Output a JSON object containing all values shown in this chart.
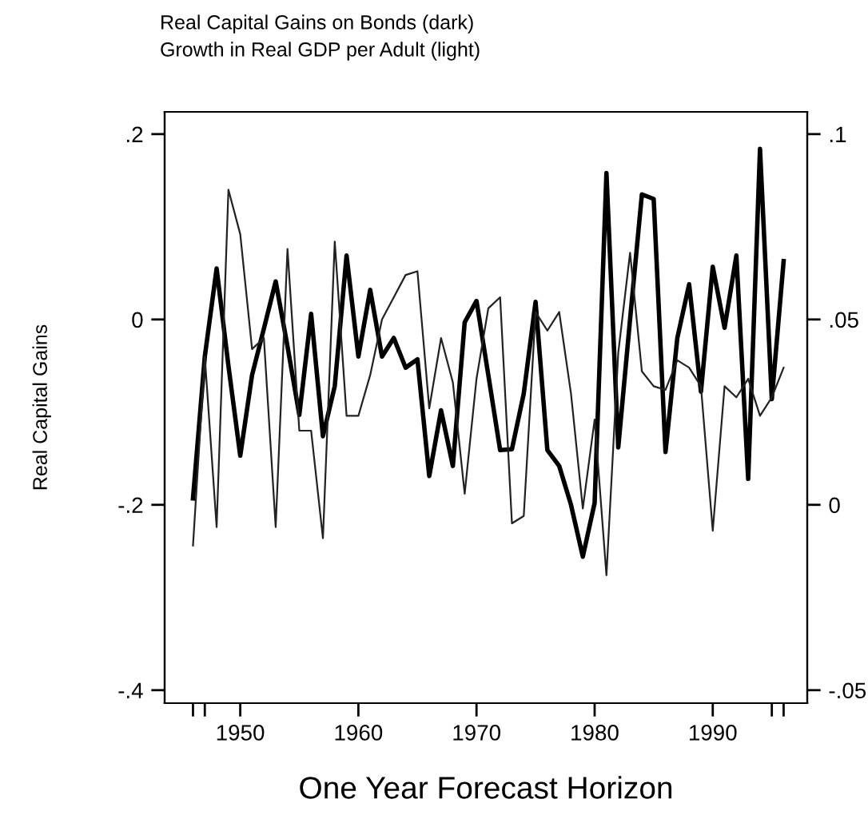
{
  "chart_data": {
    "type": "line",
    "title": "Real Capital Gains on Bonds (dark)",
    "subtitle": "Growth in Real GDP per Adult (light)",
    "xlabel": "One Year Forecast Horizon",
    "ylabel": "Real Capital Gains",
    "x": [
      1946,
      1947,
      1948,
      1949,
      1950,
      1951,
      1952,
      1953,
      1954,
      1955,
      1956,
      1957,
      1958,
      1959,
      1960,
      1961,
      1962,
      1963,
      1964,
      1965,
      1966,
      1967,
      1968,
      1969,
      1970,
      1971,
      1972,
      1973,
      1974,
      1975,
      1976,
      1977,
      1978,
      1979,
      1980,
      1981,
      1982,
      1983,
      1984,
      1985,
      1986,
      1987,
      1988,
      1989,
      1990,
      1991,
      1992,
      1993,
      1994,
      1995,
      1996
    ],
    "series": [
      {
        "color": "#000000",
        "values": [
          -0.193,
          -0.04,
          0.055,
          -0.05,
          -0.147,
          -0.06,
          -0.01,
          0.041,
          -0.029,
          -0.103,
          0.006,
          -0.126,
          -0.072,
          0.069,
          -0.04,
          0.032,
          -0.04,
          -0.02,
          -0.052,
          -0.043,
          -0.169,
          -0.098,
          -0.158,
          -0.003,
          0.02,
          -0.06,
          -0.141,
          -0.14,
          -0.08,
          0.019,
          -0.141,
          -0.158,
          -0.2,
          -0.256,
          -0.198,
          0.158,
          -0.138,
          0.0,
          0.135,
          0.13,
          -0.143,
          -0.02,
          0.038,
          -0.078,
          0.057,
          -0.009,
          0.069,
          -0.172,
          0.184,
          -0.086,
          0.063
        ]
      },
      {
        "color": "#222222",
        "axis": "y2",
        "values": [
          -0.011,
          0.04,
          -0.006,
          0.085,
          0.073,
          0.042,
          0.045,
          -0.006,
          0.069,
          0.02,
          0.02,
          -0.009,
          0.071,
          0.024,
          0.024,
          0.035,
          0.05,
          0.056,
          0.062,
          0.063,
          0.026,
          0.045,
          0.033,
          0.003,
          0.034,
          0.053,
          0.056,
          -0.005,
          -0.003,
          0.052,
          0.047,
          0.052,
          0.03,
          -0.001,
          0.023,
          -0.019,
          0.041,
          0.068,
          0.036,
          0.032,
          0.031,
          0.039,
          0.037,
          0.032,
          -0.007,
          0.032,
          0.029,
          0.034,
          0.024,
          0.029,
          0.037
        ]
      }
    ],
    "xlim": [
      1943.6,
      1998
    ],
    "xticks": [
      {
        "value": 1946,
        "label": null
      },
      {
        "value": 1947,
        "label": null
      },
      1950,
      1960,
      1970,
      1980,
      1990,
      {
        "value": 1995,
        "label": null
      },
      {
        "value": 1996,
        "label": null
      }
    ],
    "ylim": [
      -0.414,
      0.224
    ],
    "yticks": [
      {
        "value": -0.4,
        "label": "-.4"
      },
      {
        "value": -0.2,
        "label": "-.2"
      },
      0,
      {
        "value": 0.2,
        "label": ".2"
      }
    ],
    "y2lim": [
      -0.0535,
      0.106
    ],
    "y2ticks": [
      {
        "value": -0.05,
        "label": "-.05"
      },
      0,
      {
        "value": 0.05,
        "label": ".05"
      },
      {
        "value": 0.1,
        "label": ".1"
      }
    ],
    "grid": false,
    "legend": false,
    "line_style": "solid",
    "marker": "none"
  }
}
